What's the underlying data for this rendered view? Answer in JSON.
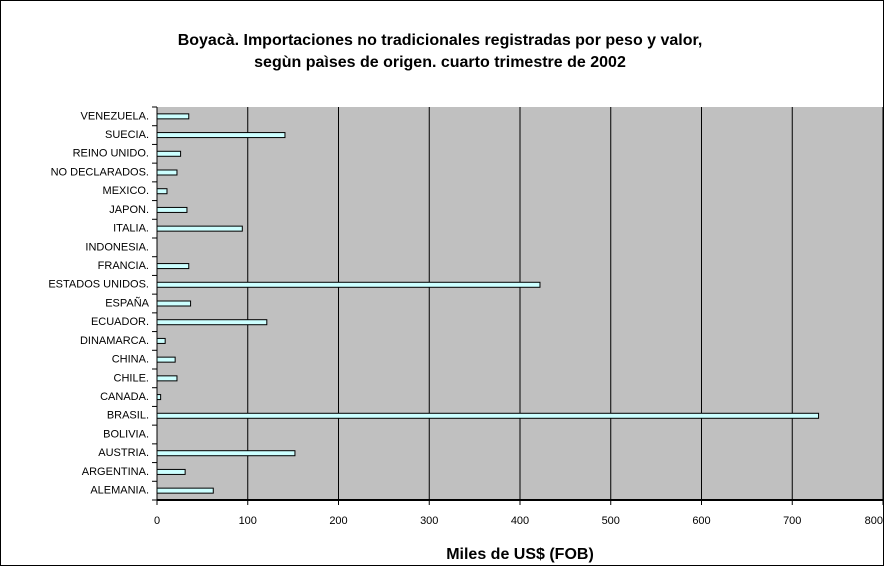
{
  "chart_data": {
    "type": "barh",
    "title": [
      "Boyacà. Importaciones no tradicionales registradas por peso y valor,",
      "segùn paìses de origen. cuarto trimestre de 2002"
    ],
    "x_label": "Miles de US$ (FOB)",
    "categories": [
      "VENEZUELA.",
      "SUECIA.",
      "REINO UNIDO.",
      "NO DECLARADOS.",
      "MEXICO.",
      "JAPON.",
      "ITALIA.",
      "INDONESIA.",
      "FRANCIA.",
      "ESTADOS UNIDOS.",
      "ESPAÑA",
      "ECUADOR.",
      "DINAMARCA.",
      "CHINA.",
      "CHILE.",
      "CANADA.",
      "BRASIL.",
      "BOLIVIA.",
      "AUSTRIA.",
      "ARGENTINA.",
      "ALEMANIA."
    ],
    "values": [
      35,
      141,
      26,
      22,
      11,
      33,
      94,
      0,
      35,
      422,
      37,
      121,
      9,
      20,
      22,
      4,
      729,
      0,
      152,
      31,
      62
    ],
    "color": "#ccffff",
    "xlim": [
      0,
      800
    ],
    "xticks": [
      0,
      100,
      200,
      300,
      400,
      500,
      600,
      700,
      800
    ],
    "grid": true
  }
}
